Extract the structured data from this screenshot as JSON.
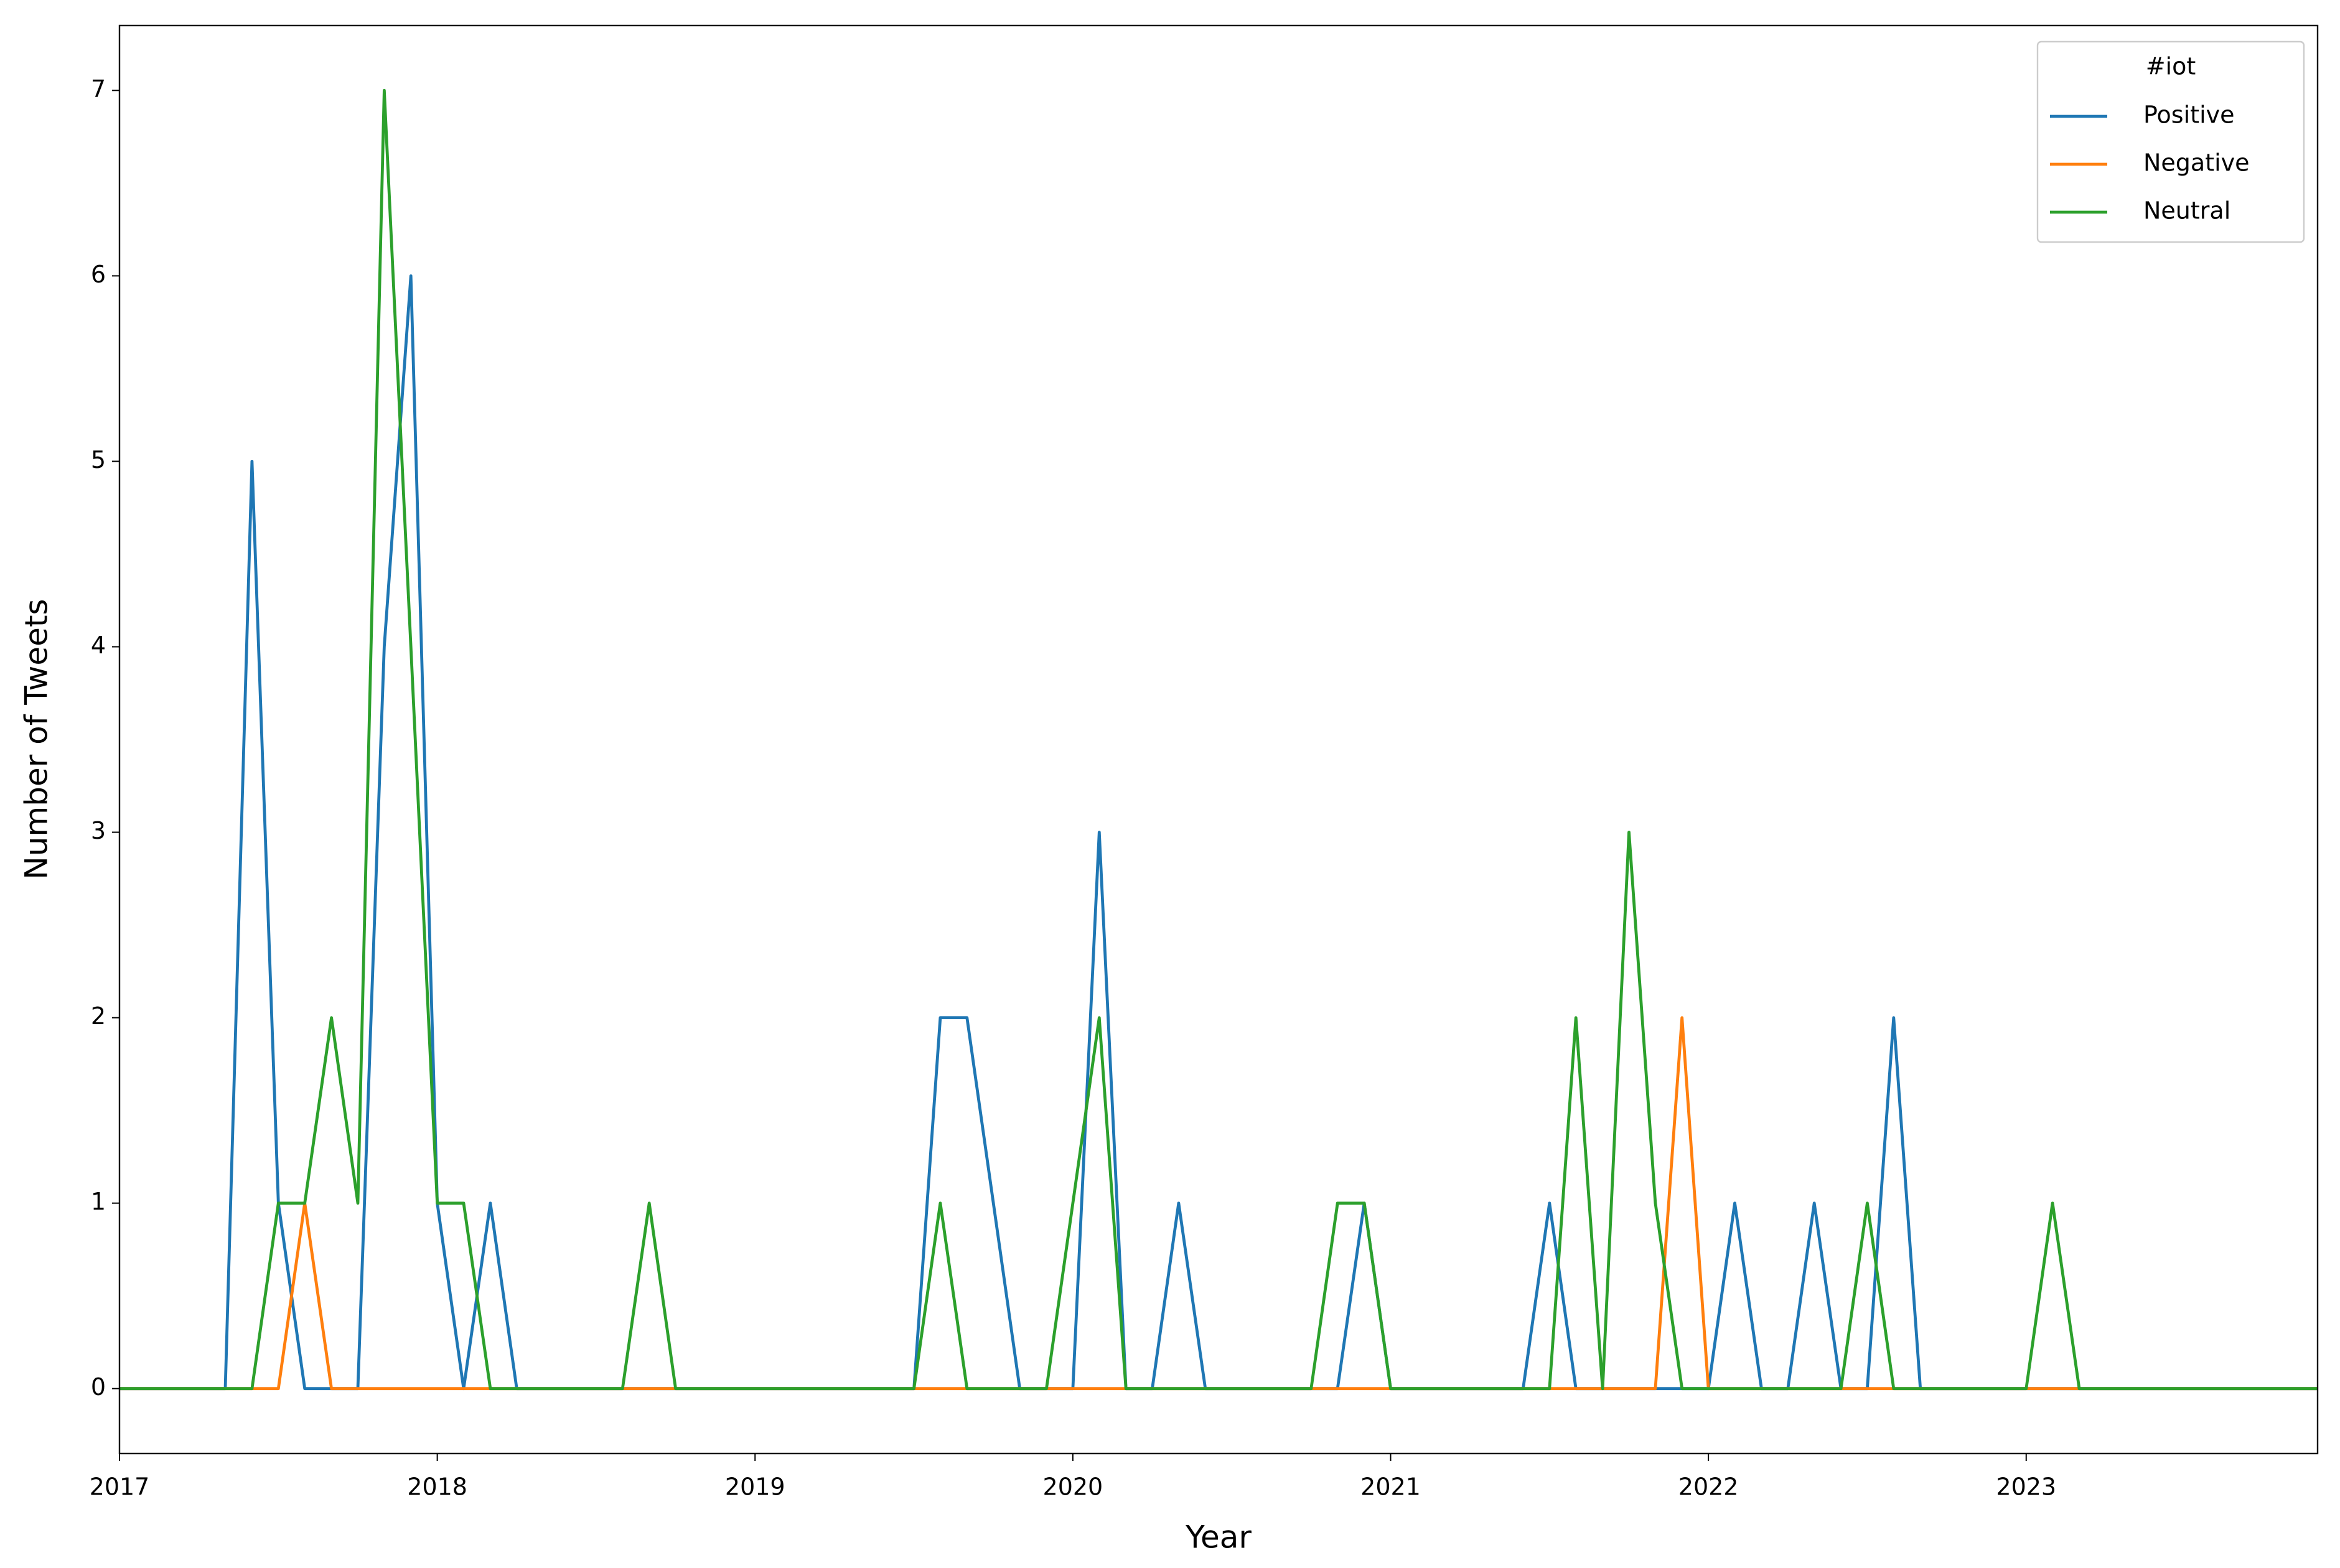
{
  "chart_data": {
    "type": "line",
    "xlabel": "Year",
    "ylabel": "Number of Tweets",
    "x": [
      2017,
      2017.083,
      2017.167,
      2017.25,
      2017.333,
      2017.417,
      2017.5,
      2017.583,
      2017.667,
      2017.75,
      2017.833,
      2017.917,
      2018,
      2018.083,
      2018.167,
      2018.25,
      2018.333,
      2018.417,
      2018.5,
      2018.583,
      2018.667,
      2018.75,
      2018.833,
      2018.917,
      2019,
      2019.083,
      2019.167,
      2019.25,
      2019.333,
      2019.417,
      2019.5,
      2019.583,
      2019.667,
      2019.75,
      2019.833,
      2019.917,
      2020,
      2020.083,
      2020.167,
      2020.25,
      2020.333,
      2020.417,
      2020.5,
      2020.583,
      2020.667,
      2020.75,
      2020.833,
      2020.917,
      2021,
      2021.083,
      2021.167,
      2021.25,
      2021.333,
      2021.417,
      2021.5,
      2021.583,
      2021.667,
      2021.75,
      2021.833,
      2021.917,
      2022,
      2022.083,
      2022.167,
      2022.25,
      2022.333,
      2022.417,
      2022.5,
      2022.583,
      2022.667,
      2022.75,
      2022.833,
      2022.917,
      2023,
      2023.083,
      2023.167,
      2023.25,
      2023.333,
      2023.417,
      2023.5,
      2023.583,
      2023.667,
      2023.75,
      2023.833,
      2023.917
    ],
    "series": [
      {
        "name": "Positive",
        "color": "#1f77b4",
        "values": [
          0,
          0,
          0,
          0,
          0,
          5,
          1,
          0,
          0,
          0,
          4,
          6,
          1,
          0,
          1,
          0,
          0,
          0,
          0,
          0,
          0,
          0,
          0,
          0,
          0,
          0,
          0,
          0,
          0,
          0,
          0,
          2,
          2,
          1,
          0,
          0,
          0,
          3,
          0,
          0,
          1,
          0,
          0,
          0,
          0,
          0,
          0,
          1,
          0,
          0,
          0,
          0,
          0,
          0,
          1,
          0,
          0,
          0,
          0,
          0,
          0,
          1,
          0,
          0,
          1,
          0,
          0,
          2,
          0,
          0,
          0,
          0,
          0,
          0,
          0,
          0,
          0,
          0,
          0,
          0,
          0,
          0,
          0,
          0
        ]
      },
      {
        "name": "Negative",
        "color": "#ff7f0e",
        "values": [
          0,
          0,
          0,
          0,
          0,
          0,
          0,
          1,
          0,
          0,
          0,
          0,
          0,
          0,
          0,
          0,
          0,
          0,
          0,
          0,
          0,
          0,
          0,
          0,
          0,
          0,
          0,
          0,
          0,
          0,
          0,
          0,
          0,
          0,
          0,
          0,
          0,
          0,
          0,
          0,
          0,
          0,
          0,
          0,
          0,
          0,
          0,
          0,
          0,
          0,
          0,
          0,
          0,
          0,
          0,
          0,
          0,
          0,
          0,
          2,
          0,
          0,
          0,
          0,
          0,
          0,
          0,
          0,
          0,
          0,
          0,
          0,
          0,
          0,
          0,
          0,
          0,
          0,
          0,
          0,
          0,
          0,
          0,
          0
        ]
      },
      {
        "name": "Neutral",
        "color": "#2ca02c",
        "values": [
          0,
          0,
          0,
          0,
          0,
          0,
          1,
          1,
          2,
          1,
          7,
          4,
          1,
          1,
          0,
          0,
          0,
          0,
          0,
          0,
          1,
          0,
          0,
          0,
          0,
          0,
          0,
          0,
          0,
          0,
          0,
          1,
          0,
          0,
          0,
          0,
          1,
          2,
          0,
          0,
          0,
          0,
          0,
          0,
          0,
          0,
          1,
          1,
          0,
          0,
          0,
          0,
          0,
          0,
          0,
          2,
          0,
          3,
          1,
          0,
          0,
          0,
          0,
          0,
          0,
          0,
          1,
          0,
          0,
          0,
          0,
          0,
          0,
          1,
          0,
          0,
          0,
          0,
          0,
          0,
          0,
          0,
          0,
          0
        ]
      }
    ],
    "legend_title": "#iot",
    "legend": "upper right",
    "xlim": [
      2017,
      2023.917
    ],
    "xticks": [
      2017,
      2018,
      2019,
      2020,
      2021,
      2022,
      2023
    ],
    "ylim": [
      -0.35,
      7.35
    ],
    "yticks": [
      0,
      1,
      2,
      3,
      4,
      5,
      6,
      7
    ]
  }
}
